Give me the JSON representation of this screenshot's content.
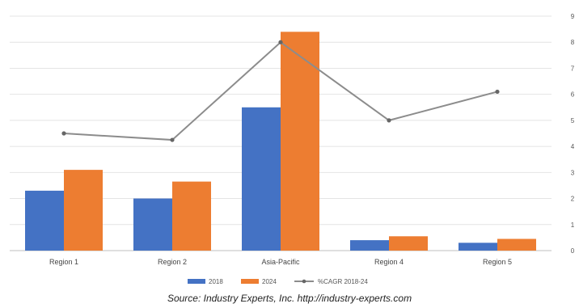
{
  "chart_data": {
    "type": "bar",
    "categories": [
      "Region 1",
      "Region 2",
      "Asia-Pacific",
      "Region 4",
      "Region 5"
    ],
    "series": [
      {
        "name": "2018",
        "type": "bar",
        "color": "#4472C4",
        "values": [
          2.3,
          2.0,
          5.5,
          0.4,
          0.3
        ]
      },
      {
        "name": "2024",
        "type": "bar",
        "color": "#ED7D31",
        "values": [
          3.1,
          2.65,
          8.4,
          0.55,
          0.45
        ]
      },
      {
        "name": "%CAGR 2018-24",
        "type": "line",
        "color": "#8C8C8C",
        "values": [
          4.5,
          4.25,
          8.0,
          5.0,
          6.1
        ]
      }
    ],
    "right_axis": {
      "ticks": [
        "0",
        "1",
        "2",
        "3",
        "4",
        "5",
        "6",
        "7",
        "8",
        "9"
      ],
      "ylim": [
        0,
        9
      ]
    },
    "left_axis_ylim": [
      0,
      9
    ],
    "grid": true,
    "legend_position": "bottom"
  },
  "source": "Source: Industry Experts, Inc. http://industry-experts.com"
}
